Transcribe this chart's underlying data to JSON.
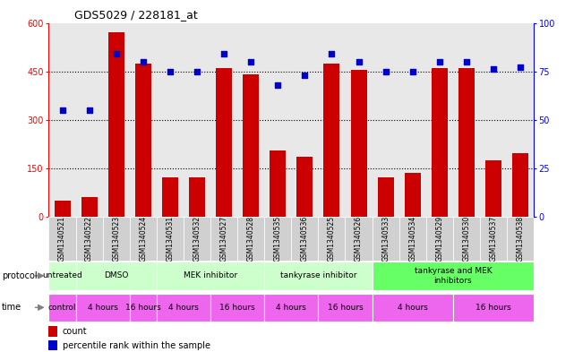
{
  "title": "GDS5029 / 228181_at",
  "samples": [
    "GSM1340521",
    "GSM1340522",
    "GSM1340523",
    "GSM1340524",
    "GSM1340531",
    "GSM1340532",
    "GSM1340527",
    "GSM1340528",
    "GSM1340535",
    "GSM1340536",
    "GSM1340525",
    "GSM1340526",
    "GSM1340533",
    "GSM1340534",
    "GSM1340529",
    "GSM1340530",
    "GSM1340537",
    "GSM1340538"
  ],
  "counts": [
    50,
    60,
    570,
    475,
    120,
    120,
    460,
    440,
    205,
    185,
    475,
    455,
    120,
    135,
    460,
    460,
    175,
    195
  ],
  "percentiles": [
    55,
    55,
    84,
    80,
    75,
    75,
    84,
    80,
    68,
    73,
    84,
    80,
    75,
    75,
    80,
    80,
    76,
    77
  ],
  "ylim_left": [
    0,
    600
  ],
  "ylim_right": [
    0,
    100
  ],
  "yticks_left": [
    0,
    150,
    300,
    450,
    600
  ],
  "yticks_right": [
    0,
    25,
    50,
    75,
    100
  ],
  "bar_color": "#cc0000",
  "dot_color": "#0000cc",
  "bg_color": "#ffffff",
  "plot_bg_color": "#e8e8e8",
  "xticklabel_bg": "#d0d0d0",
  "gridline_yticks": [
    150,
    300,
    450
  ],
  "protocol_groups": [
    {
      "label": "untreated",
      "start": 0,
      "end": 1,
      "color": "#ccffcc"
    },
    {
      "label": "DMSO",
      "start": 1,
      "end": 4,
      "color": "#ccffcc"
    },
    {
      "label": "MEK inhibitor",
      "start": 4,
      "end": 8,
      "color": "#ccffcc"
    },
    {
      "label": "tankyrase inhibitor",
      "start": 8,
      "end": 12,
      "color": "#ccffcc"
    },
    {
      "label": "tankyrase and MEK\ninhibitors",
      "start": 12,
      "end": 18,
      "color": "#66ff66"
    }
  ],
  "time_groups": [
    {
      "label": "control",
      "start": 0,
      "end": 1,
      "color": "#ee66ee"
    },
    {
      "label": "4 hours",
      "start": 1,
      "end": 3,
      "color": "#ee66ee"
    },
    {
      "label": "16 hours",
      "start": 3,
      "end": 4,
      "color": "#ee66ee"
    },
    {
      "label": "4 hours",
      "start": 4,
      "end": 6,
      "color": "#ee66ee"
    },
    {
      "label": "16 hours",
      "start": 6,
      "end": 8,
      "color": "#ee66ee"
    },
    {
      "label": "4 hours",
      "start": 8,
      "end": 10,
      "color": "#ee66ee"
    },
    {
      "label": "16 hours",
      "start": 10,
      "end": 12,
      "color": "#ee66ee"
    },
    {
      "label": "4 hours",
      "start": 12,
      "end": 15,
      "color": "#ee66ee"
    },
    {
      "label": "16 hours",
      "start": 15,
      "end": 18,
      "color": "#ee66ee"
    }
  ]
}
